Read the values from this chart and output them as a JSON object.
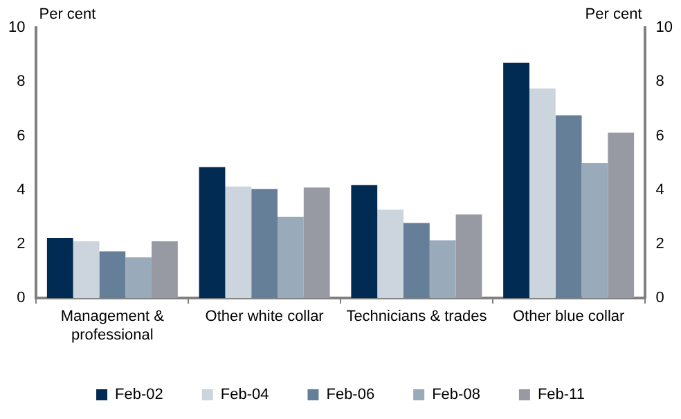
{
  "chart_data": {
    "type": "bar",
    "categories": [
      "Management & professional",
      "Other white collar",
      "Technicians & trades",
      "Other blue collar"
    ],
    "series": [
      {
        "name": "Feb-02",
        "color": "#022b54",
        "values": [
          2.23,
          4.84,
          4.18,
          8.7
        ]
      },
      {
        "name": "Feb-04",
        "color": "#ccd4de",
        "values": [
          2.1,
          4.13,
          3.27,
          7.75
        ]
      },
      {
        "name": "Feb-06",
        "color": "#657f99",
        "values": [
          1.73,
          4.04,
          2.78,
          6.76
        ]
      },
      {
        "name": "Feb-08",
        "color": "#99aabb",
        "values": [
          1.51,
          3.0,
          2.14,
          4.99
        ]
      },
      {
        "name": "Feb-11",
        "color": "#979aa3",
        "values": [
          2.1,
          4.09,
          3.09,
          6.12
        ]
      }
    ],
    "ylabel": "Per cent",
    "y2label": "Per cent",
    "ylim": [
      0,
      10
    ],
    "yticks": [
      0,
      2,
      4,
      6,
      8,
      10
    ],
    "y2lim": [
      0,
      10
    ],
    "y2ticks": [
      0,
      2,
      4,
      6,
      8,
      10
    ],
    "grid": false,
    "legend": "bottom"
  }
}
